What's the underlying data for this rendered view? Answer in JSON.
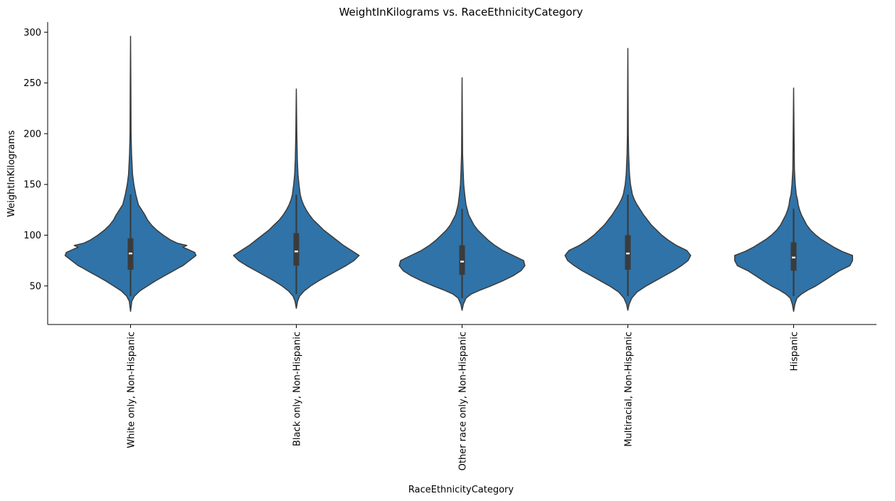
{
  "chart_data": {
    "type": "violin",
    "title": "WeightInKilograms vs. RaceEthnicityCategory",
    "xlabel": "RaceEthnicityCategory",
    "ylabel": "WeightInKilograms",
    "ylim": [
      12,
      310
    ],
    "yticks": [
      50,
      100,
      150,
      200,
      250,
      300
    ],
    "grid": false,
    "color": "#2f73a8",
    "line_color": "#3b3b3b",
    "categories": [
      "White only, Non-Hispanic",
      "Black only, Non-Hispanic",
      "Other race only, Non-Hispanic",
      "Multiracial, Non-Hispanic",
      "Hispanic"
    ],
    "violins": [
      {
        "category": "White only, Non-Hispanic",
        "min": 25,
        "max": 296,
        "q1": 66,
        "median": 82,
        "q3": 97,
        "whisker_low": 40,
        "whisker_high": 140,
        "profile": [
          [
            25,
            0.0
          ],
          [
            35,
            0.02
          ],
          [
            40,
            0.06
          ],
          [
            45,
            0.14
          ],
          [
            50,
            0.26
          ],
          [
            55,
            0.38
          ],
          [
            60,
            0.52
          ],
          [
            65,
            0.66
          ],
          [
            68,
            0.74
          ],
          [
            70,
            0.8
          ],
          [
            75,
            0.9
          ],
          [
            80,
            1.0
          ],
          [
            83,
            0.98
          ],
          [
            86,
            0.88
          ],
          [
            88,
            0.8
          ],
          [
            90,
            0.86
          ],
          [
            92,
            0.72
          ],
          [
            95,
            0.62
          ],
          [
            100,
            0.5
          ],
          [
            105,
            0.4
          ],
          [
            110,
            0.32
          ],
          [
            115,
            0.26
          ],
          [
            120,
            0.22
          ],
          [
            125,
            0.17
          ],
          [
            130,
            0.12
          ],
          [
            135,
            0.1
          ],
          [
            140,
            0.08
          ],
          [
            150,
            0.05
          ],
          [
            160,
            0.03
          ],
          [
            180,
            0.015
          ],
          [
            200,
            0.008
          ],
          [
            250,
            0.004
          ],
          [
            296,
            0.0
          ]
        ]
      },
      {
        "category": "Black only, Non-Hispanic",
        "min": 28,
        "max": 244,
        "q1": 70,
        "median": 84,
        "q3": 102,
        "whisker_low": 42,
        "whisker_high": 140,
        "profile": [
          [
            28,
            0.0
          ],
          [
            35,
            0.02
          ],
          [
            40,
            0.05
          ],
          [
            45,
            0.12
          ],
          [
            50,
            0.22
          ],
          [
            55,
            0.34
          ],
          [
            60,
            0.48
          ],
          [
            65,
            0.62
          ],
          [
            70,
            0.76
          ],
          [
            75,
            0.88
          ],
          [
            80,
            0.96
          ],
          [
            85,
            0.84
          ],
          [
            90,
            0.72
          ],
          [
            95,
            0.62
          ],
          [
            100,
            0.52
          ],
          [
            105,
            0.42
          ],
          [
            110,
            0.34
          ],
          [
            115,
            0.26
          ],
          [
            120,
            0.2
          ],
          [
            125,
            0.15
          ],
          [
            130,
            0.11
          ],
          [
            135,
            0.08
          ],
          [
            140,
            0.06
          ],
          [
            150,
            0.04
          ],
          [
            160,
            0.025
          ],
          [
            175,
            0.015
          ],
          [
            200,
            0.008
          ],
          [
            244,
            0.0
          ]
        ]
      },
      {
        "category": "Other race only, Non-Hispanic",
        "min": 26,
        "max": 255,
        "q1": 61,
        "median": 74,
        "q3": 90,
        "whisker_low": 38,
        "whisker_high": 126,
        "profile": [
          [
            26,
            0.0
          ],
          [
            32,
            0.02
          ],
          [
            38,
            0.06
          ],
          [
            42,
            0.14
          ],
          [
            46,
            0.28
          ],
          [
            50,
            0.44
          ],
          [
            55,
            0.62
          ],
          [
            60,
            0.78
          ],
          [
            65,
            0.9
          ],
          [
            70,
            0.96
          ],
          [
            75,
            0.94
          ],
          [
            80,
            0.78
          ],
          [
            85,
            0.62
          ],
          [
            90,
            0.5
          ],
          [
            95,
            0.4
          ],
          [
            100,
            0.32
          ],
          [
            105,
            0.24
          ],
          [
            110,
            0.18
          ],
          [
            115,
            0.14
          ],
          [
            120,
            0.1
          ],
          [
            130,
            0.06
          ],
          [
            140,
            0.04
          ],
          [
            150,
            0.025
          ],
          [
            165,
            0.015
          ],
          [
            180,
            0.008
          ],
          [
            255,
            0.0
          ]
        ]
      },
      {
        "category": "Multiracial, Non-Hispanic",
        "min": 26,
        "max": 284,
        "q1": 66,
        "median": 82,
        "q3": 100,
        "whisker_low": 40,
        "whisker_high": 140,
        "profile": [
          [
            26,
            0.0
          ],
          [
            32,
            0.02
          ],
          [
            38,
            0.06
          ],
          [
            44,
            0.14
          ],
          [
            50,
            0.28
          ],
          [
            55,
            0.42
          ],
          [
            60,
            0.56
          ],
          [
            65,
            0.7
          ],
          [
            70,
            0.82
          ],
          [
            75,
            0.92
          ],
          [
            80,
            0.96
          ],
          [
            85,
            0.9
          ],
          [
            90,
            0.74
          ],
          [
            95,
            0.62
          ],
          [
            100,
            0.52
          ],
          [
            105,
            0.44
          ],
          [
            110,
            0.36
          ],
          [
            115,
            0.3
          ],
          [
            120,
            0.24
          ],
          [
            125,
            0.19
          ],
          [
            130,
            0.14
          ],
          [
            135,
            0.1
          ],
          [
            140,
            0.07
          ],
          [
            150,
            0.04
          ],
          [
            160,
            0.025
          ],
          [
            180,
            0.012
          ],
          [
            200,
            0.006
          ],
          [
            284,
            0.0
          ]
        ]
      },
      {
        "category": "Hispanic",
        "min": 25,
        "max": 245,
        "q1": 65,
        "median": 78,
        "q3": 93,
        "whisker_low": 40,
        "whisker_high": 126,
        "profile": [
          [
            25,
            0.0
          ],
          [
            32,
            0.02
          ],
          [
            38,
            0.05
          ],
          [
            42,
            0.12
          ],
          [
            46,
            0.22
          ],
          [
            50,
            0.34
          ],
          [
            55,
            0.46
          ],
          [
            60,
            0.58
          ],
          [
            65,
            0.7
          ],
          [
            70,
            0.86
          ],
          [
            75,
            0.9
          ],
          [
            80,
            0.9
          ],
          [
            84,
            0.74
          ],
          [
            88,
            0.62
          ],
          [
            92,
            0.52
          ],
          [
            96,
            0.42
          ],
          [
            100,
            0.34
          ],
          [
            105,
            0.26
          ],
          [
            110,
            0.2
          ],
          [
            115,
            0.16
          ],
          [
            120,
            0.12
          ],
          [
            125,
            0.09
          ],
          [
            130,
            0.07
          ],
          [
            135,
            0.06
          ],
          [
            140,
            0.04
          ],
          [
            150,
            0.025
          ],
          [
            165,
            0.012
          ],
          [
            200,
            0.006
          ],
          [
            245,
            0.0
          ]
        ]
      }
    ]
  }
}
